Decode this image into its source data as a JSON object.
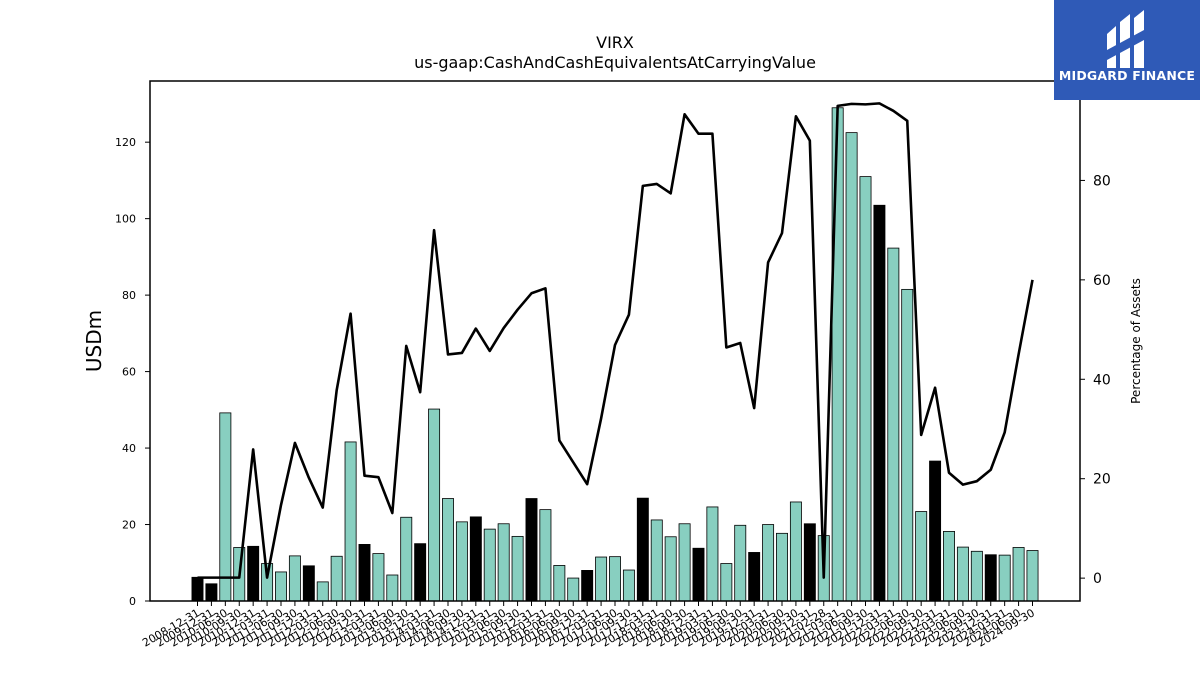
{
  "chart_data": {
    "type": "bar",
    "title": "VIRX",
    "subtitle": "us-gaap:CashAndCashEquivalentsAtCarryingValue",
    "ylabel": "USDm",
    "y2label": "Percentage of Assets",
    "ylim": [
      0,
      136
    ],
    "y2lim": [
      -4.6,
      100
    ],
    "yticks": [
      0,
      20,
      40,
      60,
      80,
      100,
      120
    ],
    "y2ticks": [
      0,
      20,
      40,
      60,
      80
    ],
    "categories": [
      "2008-12-31",
      "2009-12-31",
      "2010-06-30",
      "2010-09-30",
      "2010-12-31",
      "2011-03-31",
      "2011-06-30",
      "2011-09-30",
      "2011-12-31",
      "2012-03-31",
      "2012-06-30",
      "2012-09-30",
      "2012-12-31",
      "2013-03-31",
      "2013-06-30",
      "2013-09-30",
      "2013-12-31",
      "2014-03-31",
      "2014-06-30",
      "2014-09-30",
      "2014-12-31",
      "2015-03-31",
      "2015-06-30",
      "2015-09-30",
      "2015-12-31",
      "2016-03-31",
      "2016-06-30",
      "2016-09-30",
      "2016-12-31",
      "2017-03-31",
      "2017-06-30",
      "2017-09-30",
      "2017-12-31",
      "2018-03-31",
      "2018-06-30",
      "2018-09-30",
      "2018-12-31",
      "2019-03-31",
      "2019-06-30",
      "2019-09-30",
      "2019-12-31",
      "2020-03-31",
      "2020-06-30",
      "2020-09-30",
      "2020-12-31",
      "2021-02-28",
      "2021-03-31",
      "2021-06-30",
      "2021-09-30",
      "2021-12-31",
      "2022-03-31",
      "2022-06-30",
      "2022-09-30",
      "2022-12-31",
      "2023-03-31",
      "2023-06-30",
      "2023-09-30",
      "2023-12-31",
      "2024-03-31",
      "2024-06-30",
      "2024-09-30"
    ],
    "series": [
      {
        "name": "",
        "type": "bar",
        "values": [
          6.2,
          4.5,
          49.2,
          14.0,
          14.3,
          9.8,
          7.6,
          11.8,
          9.2,
          5.0,
          11.7,
          41.6,
          14.8,
          12.4,
          6.8,
          21.9,
          15.0,
          50.2,
          26.8,
          20.7,
          22.0,
          18.8,
          20.2,
          16.9,
          26.8,
          23.9,
          9.3,
          6.0,
          8.0,
          11.5,
          11.6,
          8.1,
          26.9,
          21.2,
          16.8,
          20.2,
          13.8,
          24.6,
          9.8,
          19.8,
          12.7,
          20.0,
          17.7,
          25.9,
          20.2,
          17.1,
          129.0,
          122.5,
          111.0,
          103.5,
          92.3,
          81.5,
          23.4,
          36.6,
          18.2,
          14.1,
          13.0,
          12.1,
          12.0,
          14.0,
          13.2
        ],
        "highlight": [
          true,
          true,
          false,
          false,
          true,
          false,
          false,
          false,
          true,
          false,
          false,
          false,
          true,
          false,
          false,
          false,
          true,
          false,
          false,
          false,
          true,
          false,
          false,
          false,
          true,
          false,
          false,
          false,
          true,
          false,
          false,
          false,
          true,
          false,
          false,
          false,
          true,
          false,
          false,
          false,
          true,
          false,
          false,
          false,
          true,
          false,
          false,
          false,
          false,
          true,
          false,
          false,
          false,
          true,
          false,
          false,
          false,
          true,
          false,
          false,
          false
        ]
      },
      {
        "name": "",
        "type": "line",
        "axis": "right",
        "values": [
          0.1,
          0.1,
          0.1,
          0.1,
          25.9,
          0.1,
          14.7,
          27.2,
          20.2,
          14.2,
          37.8,
          53.2,
          20.6,
          20.3,
          13.1,
          46.7,
          37.4,
          70.0,
          45.0,
          45.3,
          50.2,
          45.7,
          50.3,
          54.0,
          57.3,
          58.3,
          27.7,
          23.3,
          18.9,
          32.1,
          46.9,
          53.0,
          78.9,
          79.3,
          77.4,
          93.3,
          89.4,
          89.4,
          46.4,
          47.3,
          34.2,
          63.5,
          69.4,
          92.9,
          88.0,
          0.1,
          95.0,
          95.4,
          95.3,
          95.5,
          94.0,
          92.0,
          28.8,
          38.3,
          21.2,
          18.8,
          19.5,
          21.8,
          29.3,
          45.0,
          60.0
        ]
      }
    ],
    "colors": {
      "bar": "#88cfc0",
      "bar_highlight": "#000000",
      "line": "#000000"
    },
    "grid": false,
    "legend": "none"
  },
  "logo": {
    "text": "MIDGARD FINANCE"
  }
}
